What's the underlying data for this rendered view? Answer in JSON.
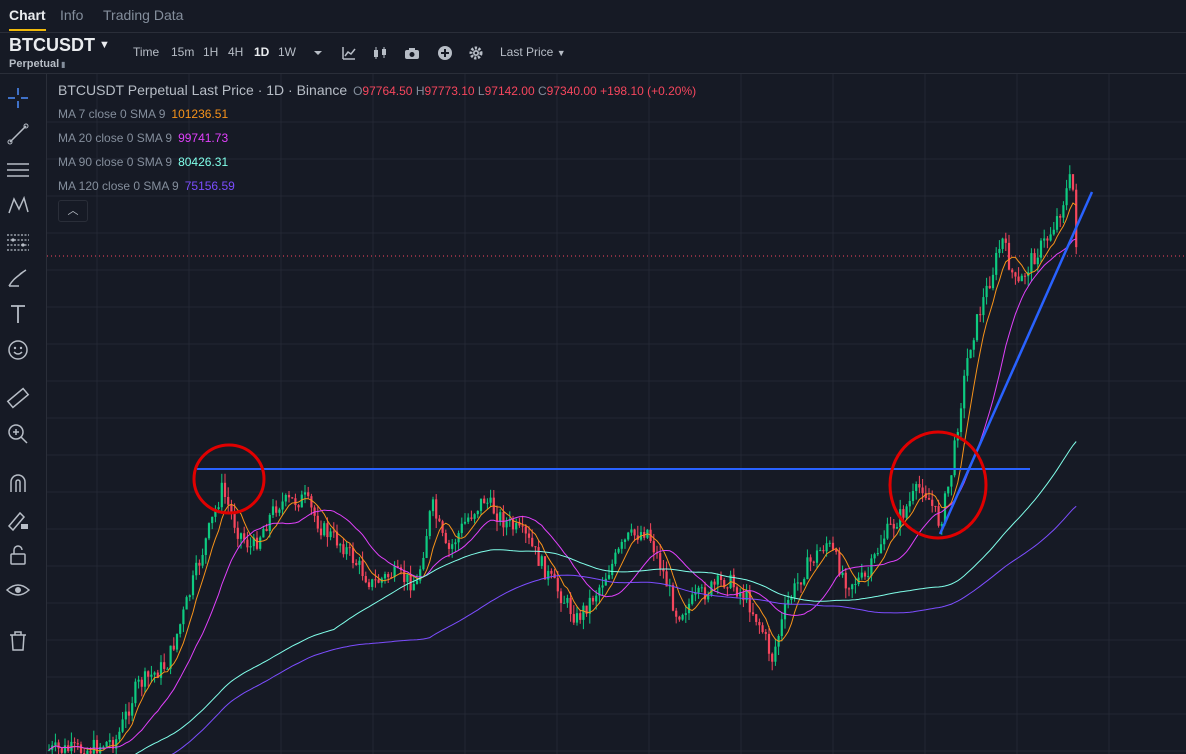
{
  "top_tabs": [
    "Chart",
    "Info",
    "Trading Data"
  ],
  "symbol": {
    "name": "BTCUSDT",
    "sub": "Perpetual"
  },
  "timeframes": [
    "Time",
    "15m",
    "1H",
    "4H",
    "1D",
    "1W"
  ],
  "active_timeframe": "1D",
  "price_type": "Last Price",
  "icons": {
    "toolbar": [
      "chevron-down-icon",
      "indicator-icon",
      "candle-style-icon",
      "camera-icon",
      "add-icon",
      "gear-icon"
    ],
    "sidebar": [
      "crosshair-icon",
      "trend-line-icon",
      "horizontal-lines-icon",
      "pattern-icon",
      "fib-icon",
      "brush-icon",
      "text-icon",
      "emoji-icon",
      "ruler-icon",
      "zoom-in-icon",
      "magnet-icon",
      "lock-drawing-icon",
      "lock-icon",
      "eye-icon",
      "trash-icon"
    ]
  },
  "legend": {
    "title": "BTCUSDT Perpetual Last Price · 1D · Binance",
    "o": "97764.50",
    "h": "97773.10",
    "l": "97142.00",
    "c": "97340.00",
    "change": "+198.10 (+0.20%)"
  },
  "ma": [
    {
      "label": "MA 7 close 0 SMA 9",
      "value": "101236.51",
      "color": "#f7931a"
    },
    {
      "label": "MA 20 close 0 SMA 9",
      "value": "99741.73",
      "color": "#e040fb"
    },
    {
      "label": "MA 90 close 0 SMA 9",
      "value": "80426.31",
      "color": "#80ffea"
    },
    {
      "label": "MA 120 close 0 SMA 9",
      "value": "75156.59",
      "color": "#7c4dff"
    }
  ],
  "colors": {
    "up": "#0ecb81",
    "down": "#f6465d",
    "drawing": "#2962ff",
    "circle": "#e00000",
    "background": "#161a25"
  }
}
